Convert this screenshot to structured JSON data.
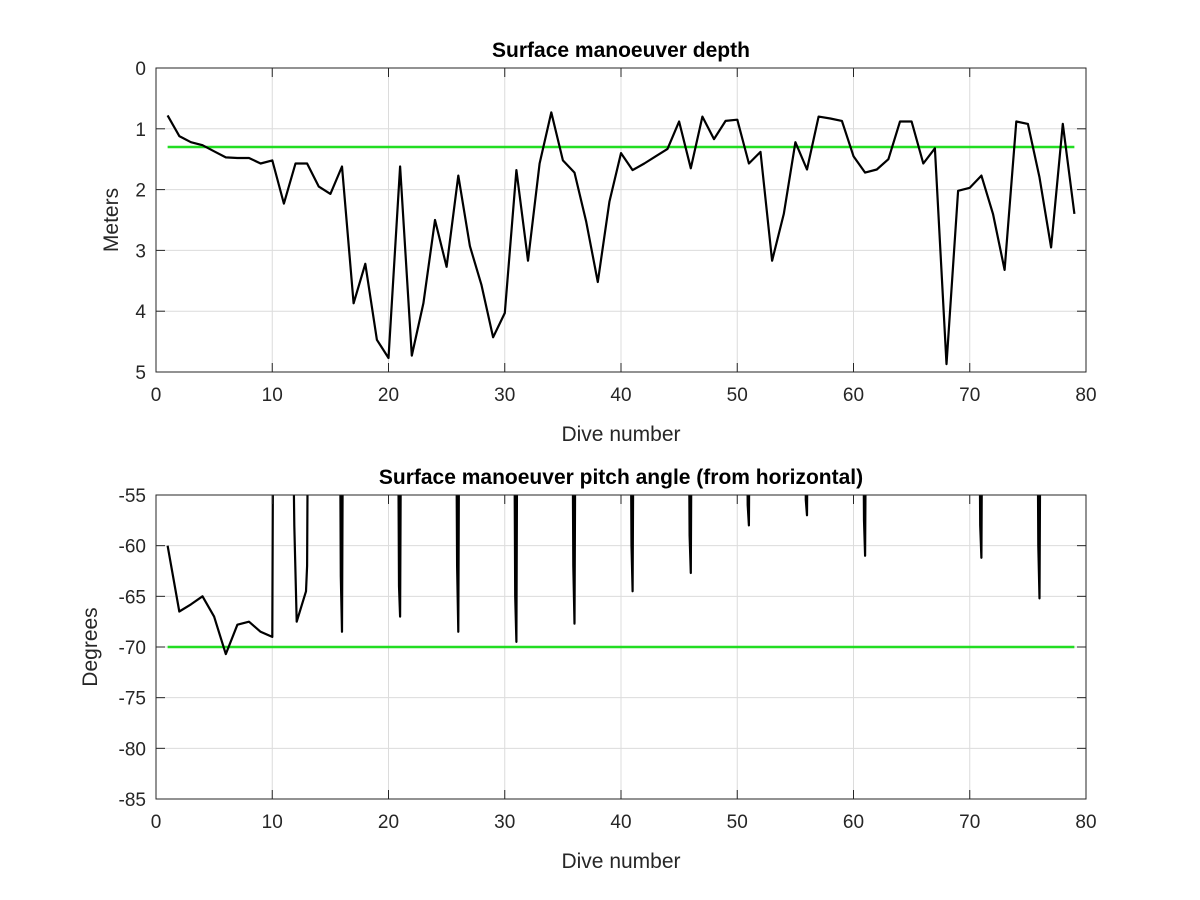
{
  "chart_data": [
    {
      "type": "line",
      "title": "Surface manoeuver depth",
      "xlabel": "Dive number",
      "ylabel": "Meters",
      "xlim": [
        0,
        80
      ],
      "ylim": [
        0,
        5
      ],
      "y_reversed": true,
      "xticks": [
        0,
        10,
        20,
        30,
        40,
        50,
        60,
        70,
        80
      ],
      "yticks": [
        0,
        1,
        2,
        3,
        4,
        5
      ],
      "grid": true,
      "colors": {
        "series": "#000000",
        "reference": "#22dd22"
      },
      "reference_line": {
        "y": 1.3,
        "x": [
          1,
          79
        ]
      },
      "series": [
        {
          "x": [
            1,
            2,
            3,
            4,
            5,
            6,
            7,
            8,
            9,
            10,
            11,
            12,
            13,
            14,
            15,
            16,
            17,
            18,
            19,
            20,
            21,
            22,
            23,
            24,
            25,
            26,
            27,
            28,
            29,
            30,
            31,
            32,
            33,
            34,
            35,
            36,
            37,
            38,
            39,
            40,
            41,
            42,
            43,
            44,
            45,
            46,
            47,
            48,
            49,
            50,
            51,
            52,
            53,
            54,
            55,
            56,
            57,
            58,
            59,
            60,
            61,
            62,
            63,
            64,
            65,
            66,
            67,
            68,
            69,
            70,
            71,
            72,
            73,
            74,
            75,
            76,
            77,
            78,
            79
          ],
          "values": [
            0.78,
            1.12,
            1.22,
            1.27,
            1.37,
            1.47,
            1.48,
            1.48,
            1.57,
            1.52,
            2.23,
            1.57,
            1.57,
            1.95,
            2.07,
            1.62,
            3.87,
            3.22,
            4.47,
            4.77,
            1.62,
            4.73,
            3.87,
            2.5,
            3.27,
            1.77,
            2.93,
            3.57,
            4.43,
            4.03,
            1.68,
            3.17,
            1.57,
            0.73,
            1.52,
            1.72,
            2.52,
            3.52,
            2.2,
            1.4,
            1.68,
            1.57,
            1.45,
            1.33,
            0.88,
            1.65,
            0.8,
            1.17,
            0.87,
            0.85,
            1.57,
            1.38,
            3.17,
            2.4,
            1.22,
            1.67,
            0.8,
            0.83,
            0.87,
            1.45,
            1.72,
            1.67,
            1.5,
            0.88,
            0.88,
            1.57,
            1.32,
            4.87,
            2.02,
            1.97,
            1.77,
            2.4,
            3.32,
            0.88,
            0.92,
            1.8,
            2.95,
            0.92,
            2.4
          ]
        }
      ]
    },
    {
      "type": "line",
      "title": "Surface manoeuver pitch angle (from horizontal)",
      "xlabel": "Dive number",
      "ylabel": "Degrees",
      "xlim": [
        0,
        80
      ],
      "ylim": [
        -85,
        -55
      ],
      "xticks": [
        0,
        10,
        20,
        30,
        40,
        50,
        60,
        70,
        80
      ],
      "yticks": [
        -55,
        -60,
        -65,
        -70,
        -75,
        -80,
        -85
      ],
      "grid": true,
      "clipped_above_ylim": true,
      "colors": {
        "series": "#000000",
        "reference": "#22dd22"
      },
      "reference_line": {
        "y": -70,
        "x": [
          1,
          79
        ]
      },
      "series": [
        {
          "x": [
            1,
            2,
            3,
            4,
            5,
            6,
            7,
            8,
            9,
            10,
            10.1,
            11.7,
            11.9,
            12.1,
            12.9,
            13.0,
            13.1,
            15.8,
            15.9,
            16.0,
            16.1,
            20.8,
            20.9,
            21.0,
            21.1,
            25.8,
            25.9,
            26.0,
            26.1,
            30.8,
            30.9,
            31.0,
            31.1,
            35.8,
            35.9,
            36.0,
            36.1,
            40.8,
            40.9,
            41.0,
            41.1,
            45.8,
            45.9,
            46.0,
            46.1,
            50.8,
            50.9,
            51.0,
            51.1,
            55.8,
            55.9,
            56.0,
            56.1,
            60.8,
            60.9,
            61.0,
            61.1,
            70.8,
            70.9,
            71.0,
            71.1,
            75.8,
            75.9,
            76.0,
            76.1
          ],
          "values": [
            -60,
            -66.5,
            -65.8,
            -65,
            -67,
            -70.7,
            -67.8,
            -67.5,
            -68.5,
            -69,
            -40,
            -40,
            -58,
            -67.5,
            -64.5,
            -62,
            -40,
            -40,
            -63,
            -68.5,
            -40,
            -40,
            -64,
            -67,
            -40,
            -40,
            -62,
            -68.5,
            -40,
            -40,
            -65,
            -69.5,
            -40,
            -40,
            -62,
            -67.7,
            -40,
            -40,
            -60,
            -64.5,
            -40,
            -40,
            -59,
            -62.7,
            -40,
            -40,
            -56,
            -58,
            -40,
            -40,
            -55.5,
            -57,
            -40,
            -40,
            -57.5,
            -61,
            -40,
            -40,
            -58,
            -61.2,
            -40,
            -40,
            -60,
            -65.2,
            -40
          ]
        }
      ]
    }
  ]
}
